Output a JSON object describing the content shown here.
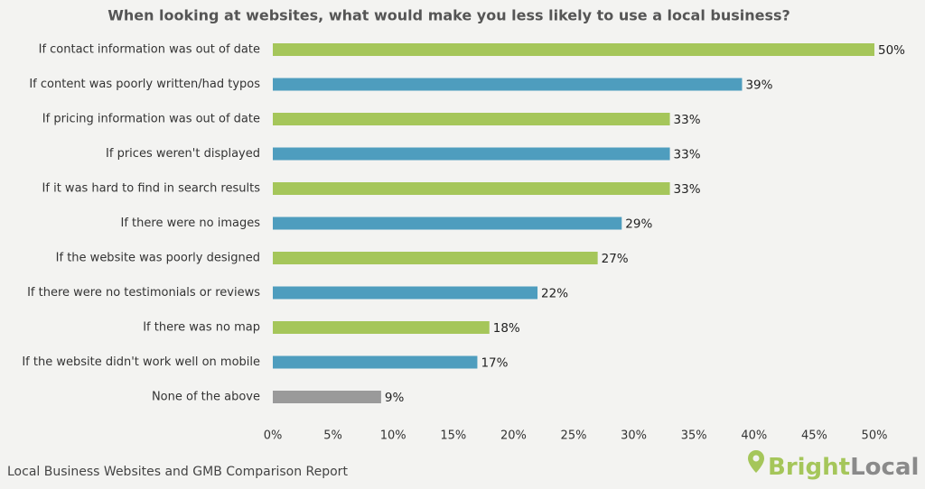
{
  "chart_data": {
    "type": "bar",
    "orientation": "horizontal",
    "title": "When looking at websites, what would make you less likely to use a local business?",
    "categories": [
      "If contact information was out of date",
      "If content was poorly written/had typos",
      "If pricing information was out of date",
      "If prices weren't displayed",
      "If it was hard to find in search results",
      "If there were no images",
      "If the website was poorly designed",
      "If there were no testimonials or reviews",
      "If there was no map",
      "If the website didn't work well on mobile",
      "None of the above"
    ],
    "values": [
      50,
      39,
      33,
      33,
      33,
      29,
      27,
      22,
      18,
      17,
      9
    ],
    "value_labels": [
      "50%",
      "39%",
      "33%",
      "33%",
      "33%",
      "29%",
      "27%",
      "22%",
      "18%",
      "17%",
      "9%"
    ],
    "colors": [
      "#a5c65a",
      "#4e9dbe",
      "#a5c65a",
      "#4e9dbe",
      "#a5c65a",
      "#4e9dbe",
      "#a5c65a",
      "#4e9dbe",
      "#a5c65a",
      "#4e9dbe",
      "#9a9a9a"
    ],
    "xlim": [
      0,
      50
    ],
    "xticks": [
      {
        "value": 0,
        "label": "0%"
      },
      {
        "value": 5,
        "label": "5%"
      },
      {
        "value": 10,
        "label": "10%"
      },
      {
        "value": 15,
        "label": "15%"
      },
      {
        "value": 20,
        "label": "20%"
      },
      {
        "value": 25,
        "label": "25%"
      },
      {
        "value": 30,
        "label": "30%"
      },
      {
        "value": 35,
        "label": "35%"
      },
      {
        "value": 40,
        "label": "40%"
      },
      {
        "value": 45,
        "label": "45%"
      },
      {
        "value": 50,
        "label": "50%"
      }
    ],
    "grid": false,
    "source": "Local Business Websites and GMB Comparison Report",
    "logo": [
      "Bright",
      "Local"
    ]
  }
}
